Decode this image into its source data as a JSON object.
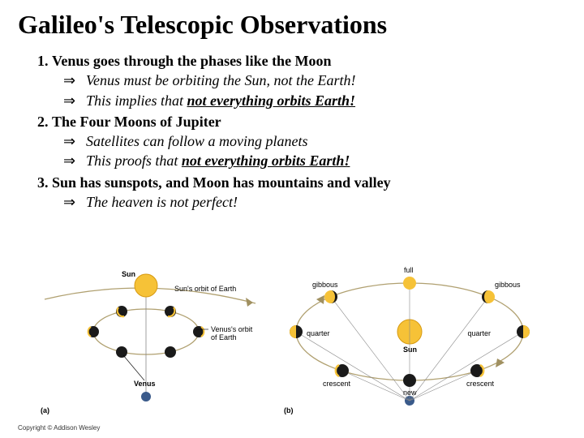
{
  "title": "Galileo's Telescopic Observations",
  "items": [
    {
      "head": "Venus goes through the phases like the Moon",
      "subs": [
        {
          "plain": "Venus must be orbiting the Sun, not the Earth!"
        },
        {
          "prefix": "This implies that ",
          "emph": "not everything orbits Earth!"
        }
      ]
    },
    {
      "head": "The Four Moons of Jupiter",
      "subs": [
        {
          "plain": "Satellites can follow a moving planets"
        },
        {
          "prefix": "This proofs that ",
          "emph": "not everything orbits Earth!"
        }
      ]
    },
    {
      "head": "Sun has sunspots, and Moon has mountains and valley",
      "subs": [
        {
          "plain": "The heaven is not perfect!"
        }
      ]
    }
  ],
  "arrow_glyph": "⇒",
  "figure": {
    "panel_a": "(a)",
    "panel_b": "(b)",
    "sun": "Sun",
    "venus": "Venus",
    "sun_orbit": "Sun's orbit of Earth",
    "venus_orbit": "Venus's orbit of Earth",
    "full": "full",
    "gibbous": "gibbous",
    "quarter": "quarter",
    "crescent": "crescent",
    "new": "new",
    "colors": {
      "sun_fill": "#f6c237",
      "sun_edge": "#d79a12",
      "venus_dark": "#1a1a1a",
      "orbit": "#b0a070",
      "arrow": "#a09060",
      "line": "#888"
    }
  },
  "copyright": "Copyright © Addison Wesley"
}
